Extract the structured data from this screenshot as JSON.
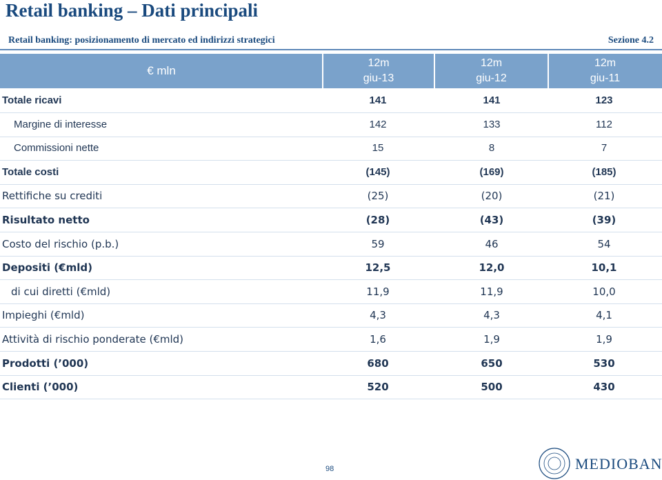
{
  "header": {
    "title": "Retail banking – Dati principali",
    "subtitle": "Retail banking: posizionamento di mercato ed indirizzi strategici",
    "section": "Sezione 4.2"
  },
  "table": {
    "unit": "€ mln",
    "columns": [
      {
        "line1": "12m",
        "line2": "giu-13"
      },
      {
        "line1": "12m",
        "line2": "giu-12"
      },
      {
        "line1": "12m",
        "line2": "giu-11"
      }
    ],
    "rows": [
      {
        "label": "Totale ricavi",
        "values": [
          "141",
          "141",
          "123"
        ]
      },
      {
        "label": "Margine di interesse",
        "values": [
          "142",
          "133",
          "112"
        ]
      },
      {
        "label": "Commissioni nette",
        "values": [
          "15",
          "8",
          "7"
        ]
      },
      {
        "label": "Totale costi",
        "values": [
          "(145)",
          "(169)",
          "(185)"
        ]
      },
      {
        "label": "Rettifiche su crediti",
        "values": [
          "(25)",
          "(20)",
          "(21)"
        ]
      },
      {
        "label": "Risultato netto",
        "values": [
          "(28)",
          "(43)",
          "(39)"
        ]
      },
      {
        "label": "Costo del rischio (p.b.)",
        "values": [
          "59",
          "46",
          "54"
        ]
      },
      {
        "label": "Depositi (€mld)",
        "values": [
          "12,5",
          "12,0",
          "10,1"
        ]
      },
      {
        "label": "di cui diretti (€mld)",
        "values": [
          "11,9",
          "11,9",
          "10,0"
        ]
      },
      {
        "label": "Impieghi (€mld)",
        "values": [
          "4,3",
          "4,3",
          "4,1"
        ]
      },
      {
        "label": "Attività di rischio ponderate (€mld)",
        "values": [
          "1,6",
          "1,9",
          "1,9"
        ]
      },
      {
        "label": "Prodotti (’000)",
        "values": [
          "680",
          "650",
          "530"
        ]
      },
      {
        "label": "Clienti (’000)",
        "values": [
          "520",
          "500",
          "430"
        ]
      }
    ]
  },
  "footer": {
    "page": "98",
    "logo": "MEDIOBANCA"
  }
}
